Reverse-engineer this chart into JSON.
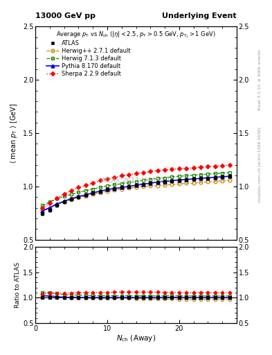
{
  "title_left": "13000 GeV pp",
  "title_right": "Underlying Event",
  "plot_title": "Average $p_{\\mathrm{T}}$ vs $N_{\\mathrm{ch}}$ ($|\\eta| < 2.5$, $p_{\\mathrm{T}} > 0.5$ GeV, $p_{\\mathrm{T}_1} > 1$ GeV)",
  "xlabel": "$N_{\\mathrm{ch}}$ (Away)",
  "ylabel_main": "$\\langle$ mean $p_{\\mathrm{T}}$ $\\rangle$ [GeV]",
  "ylabel_ratio": "Ratio to ATLAS",
  "watermark": "ATLAS_2017_I1509919",
  "right_label1": "Rivet 3.1.10, ≥ 400k events",
  "right_label2": "mcplots.cern.ch [arXiv:1306.3436]",
  "xlim": [
    0,
    28
  ],
  "ylim_main": [
    0.5,
    2.5
  ],
  "ylim_ratio": [
    0.5,
    2.0
  ],
  "atlas_x": [
    1,
    2,
    3,
    4,
    5,
    6,
    7,
    8,
    9,
    10,
    11,
    12,
    13,
    14,
    15,
    16,
    17,
    18,
    19,
    20,
    21,
    22,
    23,
    24,
    25,
    26,
    27
  ],
  "atlas_y": [
    0.745,
    0.775,
    0.82,
    0.855,
    0.88,
    0.9,
    0.92,
    0.94,
    0.955,
    0.97,
    0.98,
    0.99,
    1.0,
    1.01,
    1.02,
    1.03,
    1.04,
    1.045,
    1.05,
    1.06,
    1.065,
    1.07,
    1.075,
    1.08,
    1.085,
    1.09,
    1.095
  ],
  "herwig271_x": [
    1,
    2,
    3,
    4,
    5,
    6,
    7,
    8,
    9,
    10,
    11,
    12,
    13,
    14,
    15,
    16,
    17,
    18,
    19,
    20,
    21,
    22,
    23,
    24,
    25,
    26,
    27
  ],
  "herwig271_y": [
    0.775,
    0.8,
    0.83,
    0.855,
    0.875,
    0.895,
    0.91,
    0.925,
    0.94,
    0.955,
    0.965,
    0.975,
    0.985,
    0.99,
    0.998,
    1.003,
    1.008,
    1.013,
    1.018,
    1.023,
    1.028,
    1.032,
    1.037,
    1.042,
    1.047,
    1.052,
    1.057
  ],
  "herwig713_x": [
    1,
    2,
    3,
    4,
    5,
    6,
    7,
    8,
    9,
    10,
    11,
    12,
    13,
    14,
    15,
    16,
    17,
    18,
    19,
    20,
    21,
    22,
    23,
    24,
    25,
    26,
    27
  ],
  "herwig713_y": [
    0.82,
    0.855,
    0.885,
    0.905,
    0.925,
    0.945,
    0.96,
    0.975,
    0.99,
    1.005,
    1.015,
    1.025,
    1.035,
    1.045,
    1.055,
    1.065,
    1.075,
    1.08,
    1.09,
    1.095,
    1.1,
    1.105,
    1.11,
    1.115,
    1.12,
    1.125,
    1.13
  ],
  "pythia_x": [
    1,
    2,
    3,
    4,
    5,
    6,
    7,
    8,
    9,
    10,
    11,
    12,
    13,
    14,
    15,
    16,
    17,
    18,
    19,
    20,
    21,
    22,
    23,
    24,
    25,
    26,
    27
  ],
  "pythia_y": [
    0.77,
    0.8,
    0.835,
    0.86,
    0.885,
    0.905,
    0.92,
    0.94,
    0.955,
    0.97,
    0.98,
    0.99,
    1.0,
    1.01,
    1.02,
    1.03,
    1.04,
    1.045,
    1.055,
    1.06,
    1.065,
    1.07,
    1.075,
    1.08,
    1.085,
    1.09,
    1.095
  ],
  "sherpa_x": [
    1,
    2,
    3,
    4,
    5,
    6,
    7,
    8,
    9,
    10,
    11,
    12,
    13,
    14,
    15,
    16,
    17,
    18,
    19,
    20,
    21,
    22,
    23,
    24,
    25,
    26,
    27
  ],
  "sherpa_y": [
    0.795,
    0.845,
    0.89,
    0.93,
    0.96,
    0.99,
    1.01,
    1.03,
    1.055,
    1.07,
    1.085,
    1.1,
    1.11,
    1.12,
    1.13,
    1.14,
    1.15,
    1.155,
    1.16,
    1.165,
    1.17,
    1.175,
    1.18,
    1.185,
    1.19,
    1.195,
    1.2
  ],
  "atlas_color": "black",
  "herwig271_color": "#cc8800",
  "herwig713_color": "#228800",
  "pythia_color": "blue",
  "sherpa_color": "red",
  "atlas_err": 0.018
}
